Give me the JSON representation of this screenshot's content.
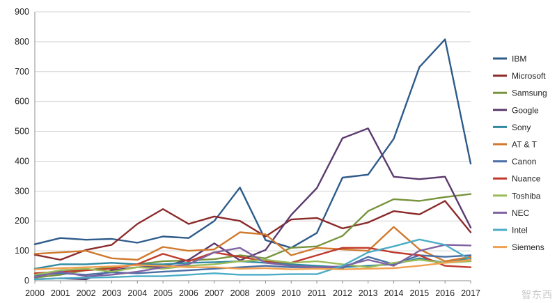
{
  "chart_data": {
    "type": "line",
    "title": "",
    "xlabel": "",
    "ylabel": "",
    "x": [
      "2000",
      "2001",
      "2002",
      "2003",
      "2004",
      "2005",
      "2006",
      "2007",
      "2008",
      "2009",
      "2010",
      "2011",
      "2012",
      "2013",
      "2014",
      "2015",
      "2016",
      "2017"
    ],
    "ylim": [
      0,
      900
    ],
    "yticks": [
      0,
      100,
      200,
      300,
      400,
      500,
      600,
      700,
      800,
      900
    ],
    "grid": "horizontal",
    "legend_position": "right",
    "series": [
      {
        "name": "IBM",
        "color": "#2e5b8a",
        "values": [
          122,
          143,
          137,
          140,
          127,
          148,
          143,
          200,
          312,
          136,
          110,
          160,
          345,
          355,
          475,
          715,
          808,
          392
        ]
      },
      {
        "name": "Microsoft",
        "color": "#8b2a2a",
        "values": [
          87,
          70,
          103,
          120,
          190,
          240,
          190,
          215,
          200,
          148,
          205,
          210,
          175,
          195,
          233,
          222,
          267,
          162
        ]
      },
      {
        "name": "Samsung",
        "color": "#77933c",
        "values": [
          10,
          20,
          35,
          45,
          55,
          65,
          68,
          72,
          85,
          75,
          110,
          115,
          150,
          233,
          273,
          267,
          280,
          290
        ]
      },
      {
        "name": "Google",
        "color": "#5b3a6e",
        "values": [
          5,
          8,
          5,
          35,
          45,
          48,
          70,
          125,
          68,
          103,
          220,
          310,
          477,
          510,
          348,
          340,
          348,
          178
        ]
      },
      {
        "name": "Sony",
        "color": "#2f8aa0",
        "values": [
          40,
          55,
          55,
          60,
          55,
          55,
          60,
          62,
          65,
          60,
          55,
          50,
          45,
          50,
          55,
          75,
          60,
          75
        ]
      },
      {
        "name": "AT & T",
        "color": "#d07a2e",
        "values": [
          90,
          95,
          100,
          75,
          70,
          113,
          100,
          105,
          162,
          155,
          85,
          110,
          105,
          100,
          180,
          105,
          65,
          80
        ]
      },
      {
        "name": "Canon",
        "color": "#4a6fa5",
        "values": [
          18,
          25,
          20,
          28,
          25,
          30,
          35,
          40,
          45,
          50,
          45,
          45,
          42,
          80,
          55,
          85,
          80,
          85
        ]
      },
      {
        "name": "Nuance",
        "color": "#c0392b",
        "values": [
          25,
          30,
          35,
          40,
          55,
          90,
          65,
          95,
          80,
          65,
          60,
          85,
          110,
          110,
          95,
          85,
          50,
          45
        ]
      },
      {
        "name": "Toshiba",
        "color": "#9bbb59",
        "values": [
          20,
          35,
          40,
          30,
          45,
          40,
          50,
          55,
          65,
          70,
          60,
          65,
          55,
          45,
          60,
          70,
          60,
          65
        ]
      },
      {
        "name": "NEC",
        "color": "#8064a2",
        "values": [
          12,
          30,
          15,
          20,
          30,
          45,
          55,
          95,
          110,
          60,
          50,
          45,
          48,
          70,
          50,
          100,
          120,
          118
        ]
      },
      {
        "name": "Intel",
        "color": "#4bacc6",
        "values": [
          5,
          8,
          10,
          12,
          15,
          15,
          20,
          25,
          20,
          20,
          22,
          22,
          50,
          95,
          115,
          138,
          120,
          70
        ]
      },
      {
        "name": "Siemens",
        "color": "#f0a050",
        "values": [
          38,
          42,
          45,
          48,
          52,
          50,
          45,
          45,
          40,
          42,
          38,
          40,
          38,
          40,
          42,
          50,
          60,
          70
        ]
      }
    ]
  },
  "watermark": "智东西"
}
